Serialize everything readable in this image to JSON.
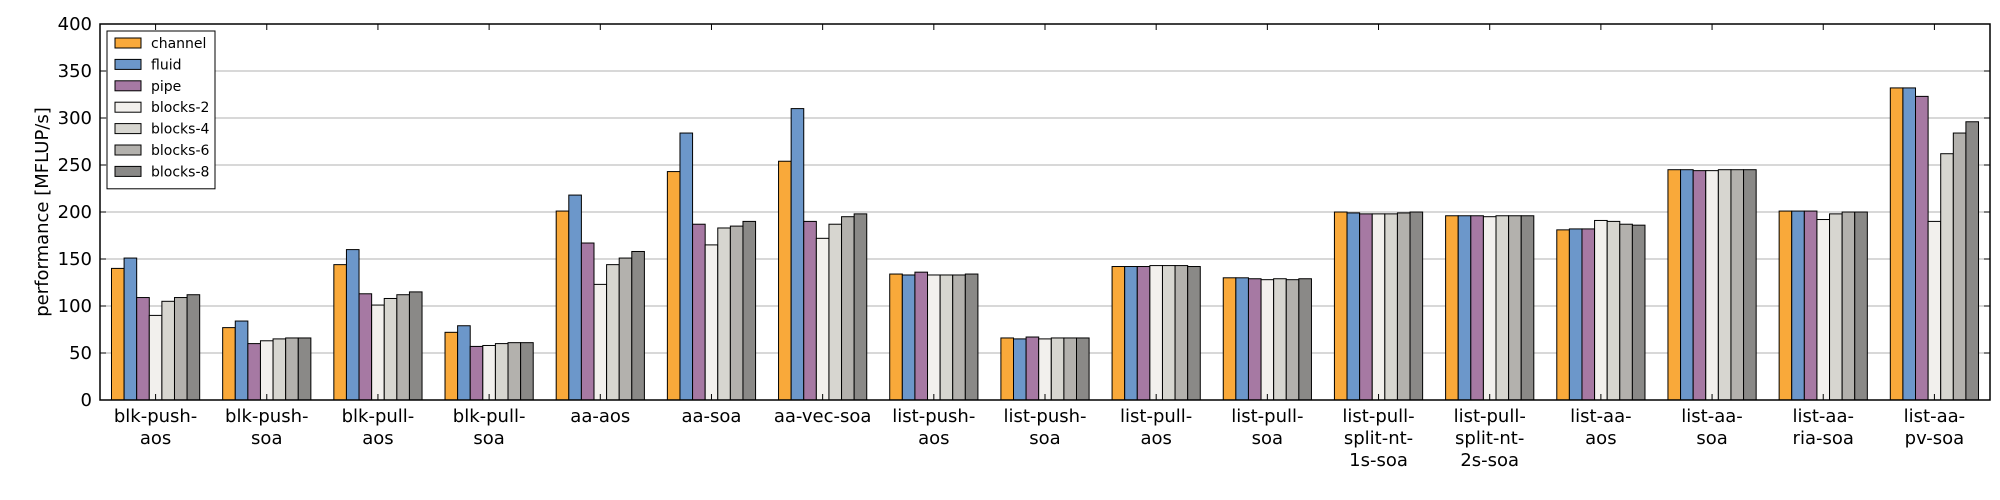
{
  "chart_data": {
    "type": "bar",
    "title": "",
    "xlabel": "",
    "ylabel": "performance [MFLUP/s]",
    "ylim": [
      0,
      400
    ],
    "yticks": [
      0,
      50,
      100,
      150,
      200,
      250,
      300,
      350,
      400
    ],
    "grid": "horizontal",
    "legend_position": "top-left",
    "categories": [
      [
        "blk-push-",
        "aos"
      ],
      [
        "blk-push-",
        "soa"
      ],
      [
        "blk-pull-",
        "aos"
      ],
      [
        "blk-pull-",
        "soa"
      ],
      [
        "aa-aos"
      ],
      [
        "aa-soa"
      ],
      [
        "aa-vec-soa"
      ],
      [
        "list-push-",
        "aos"
      ],
      [
        "list-push-",
        "soa"
      ],
      [
        "list-pull-",
        "aos"
      ],
      [
        "list-pull-",
        "soa"
      ],
      [
        "list-pull-",
        "split-nt-",
        "1s-soa"
      ],
      [
        "list-pull-",
        "split-nt-",
        "2s-soa"
      ],
      [
        "list-aa-",
        "aos"
      ],
      [
        "list-aa-",
        "soa"
      ],
      [
        "list-aa-",
        "ria-soa"
      ],
      [
        "list-aa-",
        "pv-soa"
      ]
    ],
    "series": [
      {
        "name": "channel",
        "color": "#f9a93a",
        "values": [
          140,
          77,
          144,
          72,
          201,
          243,
          254,
          134,
          66,
          142,
          130,
          200,
          196,
          181,
          245,
          201,
          332
        ]
      },
      {
        "name": "fluid",
        "color": "#6c97ca",
        "values": [
          151,
          84,
          160,
          79,
          218,
          284,
          310,
          133,
          65,
          142,
          130,
          199,
          196,
          182,
          245,
          201,
          332
        ]
      },
      {
        "name": "pipe",
        "color": "#a679a3",
        "values": [
          109,
          60,
          113,
          57,
          167,
          187,
          190,
          136,
          67,
          142,
          129,
          198,
          196,
          182,
          244,
          201,
          323
        ]
      },
      {
        "name": "blocks-2",
        "color": "#f2f0ed",
        "values": [
          90,
          63,
          101,
          58,
          123,
          165,
          172,
          133,
          65,
          143,
          128,
          198,
          195,
          191,
          244,
          192,
          190
        ]
      },
      {
        "name": "blocks-4",
        "color": "#d7d6d0",
        "values": [
          105,
          65,
          108,
          60,
          144,
          183,
          187,
          133,
          66,
          143,
          129,
          198,
          196,
          190,
          245,
          198,
          262
        ]
      },
      {
        "name": "blocks-6",
        "color": "#b3b1ad",
        "values": [
          109,
          66,
          112,
          61,
          151,
          185,
          195,
          133,
          66,
          143,
          128,
          199,
          196,
          187,
          245,
          200,
          284
        ]
      },
      {
        "name": "blocks-8",
        "color": "#8a8987",
        "values": [
          112,
          66,
          115,
          61,
          158,
          190,
          198,
          134,
          66,
          142,
          129,
          200,
          196,
          186,
          245,
          200,
          296
        ]
      }
    ]
  }
}
